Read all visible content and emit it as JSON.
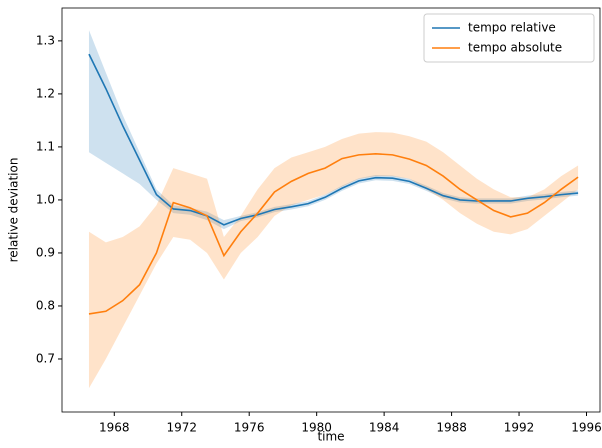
{
  "chart_data": {
    "type": "line",
    "xlabel": "time",
    "ylabel": "relative deviation",
    "x": [
      1966.5,
      1967.5,
      1968.5,
      1969.5,
      1970.5,
      1971.5,
      1972.5,
      1973.5,
      1974.5,
      1975.5,
      1976.5,
      1977.5,
      1978.5,
      1979.5,
      1980.5,
      1981.5,
      1982.5,
      1983.5,
      1984.5,
      1985.5,
      1986.5,
      1987.5,
      1988.5,
      1989.5,
      1990.5,
      1991.5,
      1992.5,
      1993.5,
      1994.5,
      1995.5
    ],
    "series": [
      {
        "name": "tempo relative",
        "color": "#1f77b4",
        "band_color": "#1f77b4",
        "values": [
          1.275,
          1.21,
          1.14,
          1.075,
          1.01,
          0.983,
          0.98,
          0.97,
          0.953,
          0.965,
          0.972,
          0.982,
          0.987,
          0.993,
          1.005,
          1.022,
          1.036,
          1.042,
          1.041,
          1.035,
          1.022,
          1.008,
          1.0,
          0.998,
          0.998,
          0.998,
          1.003,
          1.006,
          1.01,
          1.013
        ],
        "upper": [
          1.32,
          1.24,
          1.16,
          1.09,
          1.02,
          0.99,
          0.985,
          0.978,
          0.962,
          0.97,
          0.977,
          0.987,
          0.992,
          0.998,
          1.01,
          1.027,
          1.041,
          1.047,
          1.046,
          1.04,
          1.027,
          1.013,
          1.005,
          1.003,
          1.003,
          1.003,
          1.008,
          1.011,
          1.015,
          1.018
        ],
        "lower": [
          1.09,
          1.07,
          1.05,
          1.03,
          1.0,
          0.975,
          0.972,
          0.962,
          0.945,
          0.96,
          0.967,
          0.977,
          0.982,
          0.988,
          1.0,
          1.017,
          1.031,
          1.037,
          1.036,
          1.03,
          1.017,
          1.003,
          0.995,
          0.993,
          0.993,
          0.993,
          0.998,
          1.001,
          1.005,
          1.008
        ]
      },
      {
        "name": "tempo absolute",
        "color": "#ff7f0e",
        "band_color": "#ff7f0e",
        "values": [
          0.785,
          0.79,
          0.81,
          0.84,
          0.9,
          0.995,
          0.985,
          0.97,
          0.895,
          0.94,
          0.975,
          1.015,
          1.035,
          1.05,
          1.06,
          1.078,
          1.085,
          1.087,
          1.085,
          1.077,
          1.065,
          1.045,
          1.02,
          1.0,
          0.98,
          0.968,
          0.975,
          0.995,
          1.02,
          1.043
        ],
        "upper": [
          0.94,
          0.92,
          0.93,
          0.95,
          0.99,
          1.06,
          1.05,
          1.04,
          0.93,
          0.97,
          1.02,
          1.06,
          1.08,
          1.09,
          1.1,
          1.115,
          1.125,
          1.128,
          1.127,
          1.12,
          1.11,
          1.09,
          1.065,
          1.04,
          1.02,
          1.005,
          1.005,
          1.02,
          1.045,
          1.065
        ],
        "lower": [
          0.645,
          0.7,
          0.76,
          0.82,
          0.88,
          0.93,
          0.925,
          0.9,
          0.85,
          0.9,
          0.93,
          0.97,
          0.99,
          1.0,
          1.01,
          1.025,
          1.04,
          1.045,
          1.045,
          1.04,
          1.02,
          1.0,
          0.975,
          0.955,
          0.94,
          0.935,
          0.945,
          0.97,
          0.995,
          1.02
        ]
      }
    ],
    "xlim": [
      1964.9,
      1996.8
    ],
    "ylim": [
      0.6,
      1.362
    ],
    "xticks": [
      1968,
      1972,
      1976,
      1980,
      1984,
      1988,
      1992,
      1996
    ],
    "yticks": [
      0.7,
      0.8,
      0.9,
      {
        "value": 1,
        "label": "1.0"
      },
      1.1,
      1.2,
      1.3
    ],
    "grid": false,
    "legend": "upper right"
  }
}
